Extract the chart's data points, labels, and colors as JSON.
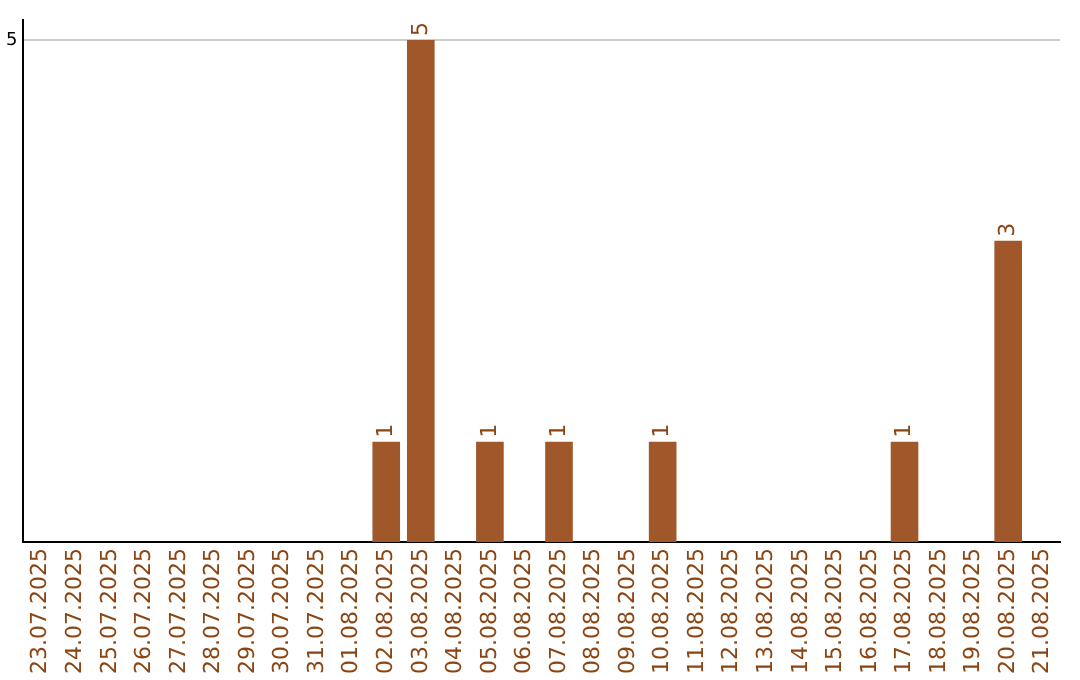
{
  "chart_data": {
    "type": "bar",
    "categories": [
      "23.07.2025",
      "24.07.2025",
      "25.07.2025",
      "26.07.2025",
      "27.07.2025",
      "28.07.2025",
      "29.07.2025",
      "30.07.2025",
      "31.07.2025",
      "01.08.2025",
      "02.08.2025",
      "03.08.2025",
      "04.08.2025",
      "05.08.2025",
      "06.08.2025",
      "07.08.2025",
      "08.08.2025",
      "09.08.2025",
      "10.08.2025",
      "11.08.2025",
      "12.08.2025",
      "13.08.2025",
      "14.08.2025",
      "15.08.2025",
      "16.08.2025",
      "17.08.2025",
      "18.08.2025",
      "19.08.2025",
      "20.08.2025",
      "21.08.2025"
    ],
    "values": [
      0,
      0,
      0,
      0,
      0,
      0,
      0,
      0,
      0,
      0,
      1,
      5,
      0,
      1,
      0,
      1,
      0,
      0,
      1,
      0,
      0,
      0,
      0,
      0,
      0,
      1,
      0,
      0,
      3,
      0
    ],
    "value_labels": [
      null,
      null,
      null,
      null,
      null,
      null,
      null,
      null,
      null,
      null,
      "1",
      "5",
      null,
      "1",
      null,
      "1",
      null,
      null,
      "1",
      null,
      null,
      null,
      null,
      null,
      null,
      "1",
      null,
      null,
      "3",
      null
    ],
    "color": "#a0582a",
    "ylim": [
      0,
      5.2
    ],
    "yticks": [
      5
    ],
    "grid": "y",
    "legend": false
  }
}
